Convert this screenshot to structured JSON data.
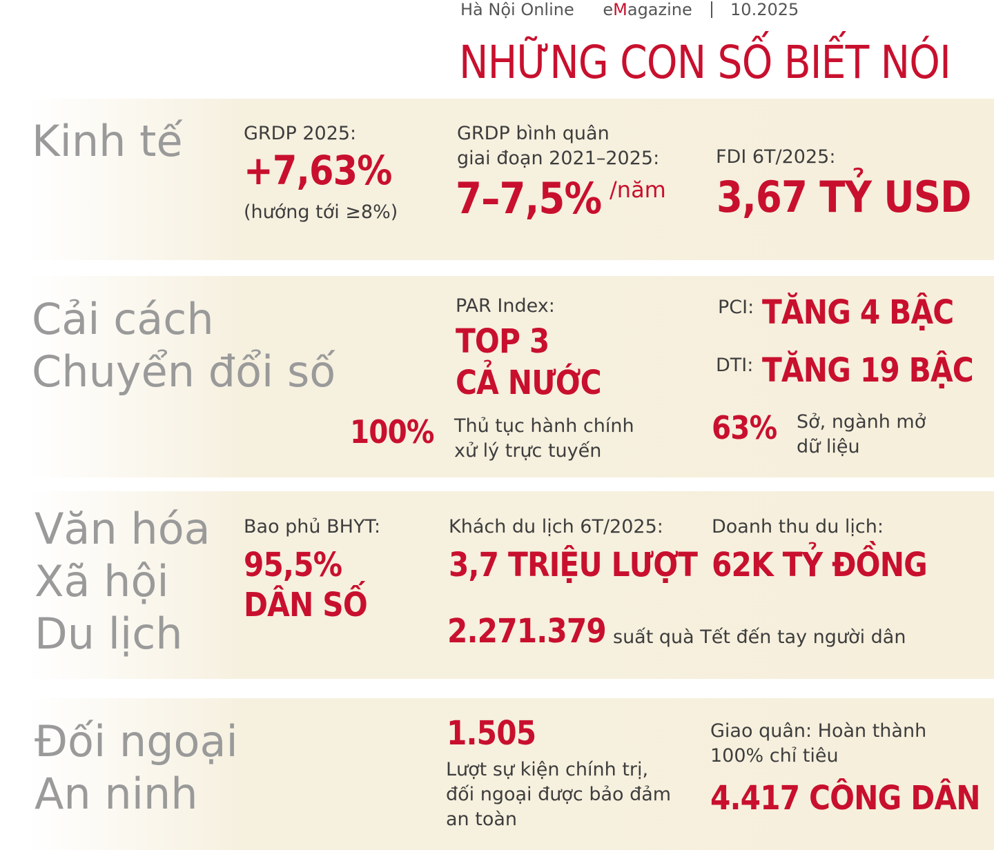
{
  "header": {
    "publisher": "Hà Nội Online",
    "magazine_pre": "e",
    "magazine_accent": "M",
    "magazine_post": "agazine",
    "date": "10.2025"
  },
  "title": "NHỮNG CON SỐ BIẾT NÓI",
  "sections": {
    "economy": {
      "category": "Kinh tế",
      "grdp_label": "GRDP 2025:",
      "grdp_value": "+7,63%",
      "grdp_note": "(hướng tới ≥8%)",
      "avg_label_1": "GRDP bình quân",
      "avg_label_2": "giai đoạn 2021–2025:",
      "avg_value": "7–7,5%",
      "avg_unit": "/năm",
      "fdi_label": "FDI 6T/2025:",
      "fdi_value": "3,67 TỶ USD"
    },
    "reform": {
      "category_1": "Cải cách",
      "category_2": "Chuyển đổi số",
      "par_label": "PAR Index:",
      "par_value_1": "TOP 3",
      "par_value_2": "CẢ NƯỚC",
      "pci_label": "PCI:",
      "pci_value": "TĂNG 4 BẬC",
      "dti_label": "DTI:",
      "dti_value": "TĂNG 19 BẬC",
      "online_value": "100%",
      "online_text_1": "Thủ tục hành chính",
      "online_text_2": "xử lý trực tuyến",
      "data_value": "63%",
      "data_text_1": "Sở, ngành mở",
      "data_text_2": "dữ liệu"
    },
    "society": {
      "category_1": "Văn hóa",
      "category_2": "Xã hội",
      "category_3": "Du lịch",
      "bhyt_label": "Bao phủ BHYT:",
      "bhyt_value_1": "95,5%",
      "bhyt_value_2": "DÂN SỐ",
      "tourist_label": "Khách du lịch 6T/2025:",
      "tourist_value": "3,7 TRIỆU LƯỢT",
      "revenue_label": "Doanh thu du lịch:",
      "revenue_value": "62K TỶ ĐỒNG",
      "gifts_value": "2.271.379",
      "gifts_text": "suất quà Tết đến tay người dân"
    },
    "security": {
      "category_1": "Đối ngoại",
      "category_2": "An ninh",
      "events_value": "1.505",
      "events_text_1": "Lượt sự kiện chính trị,",
      "events_text_2": "đối ngoại được bảo đảm",
      "events_text_3": "an toàn",
      "recruit_label_1": "Giao quân: Hoàn thành",
      "recruit_label_2": "100% chỉ tiêu",
      "recruit_value": "4.417 CÔNG DÂN"
    }
  }
}
